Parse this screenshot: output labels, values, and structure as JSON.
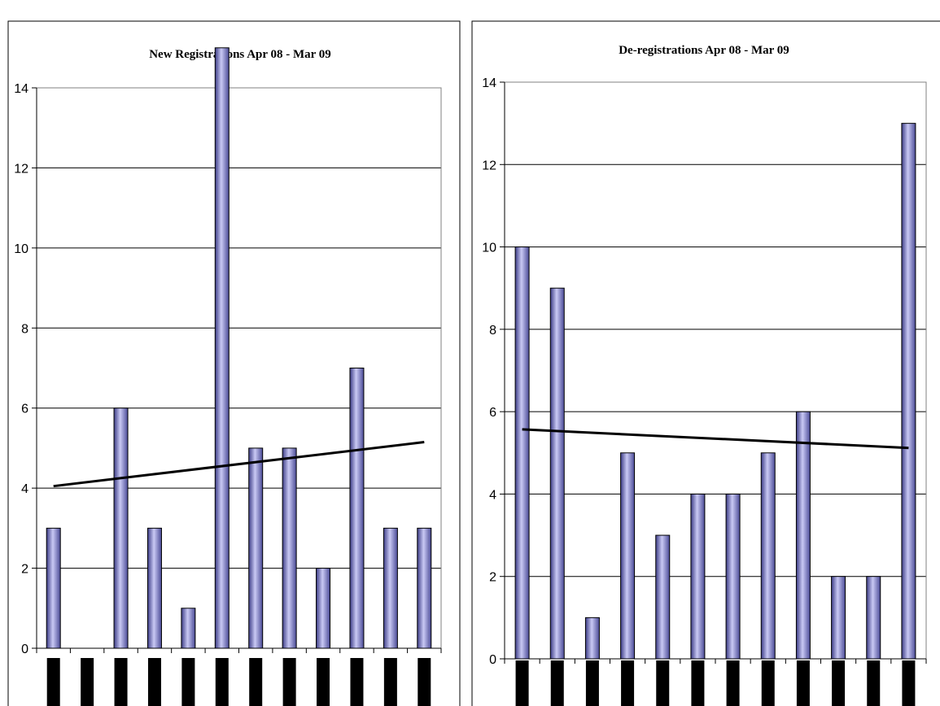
{
  "colors": {
    "bar_light": "#c9c9f4",
    "bar_dark": "#3c3c86",
    "trend": "#000000",
    "grid": "#000000",
    "plot_border": "#808080",
    "label_blocks": "#000000"
  },
  "chart_data": [
    {
      "type": "bar",
      "title": "New Registrations Apr 08 - Mar 09",
      "categories": [
        "",
        "",
        "",
        "",
        "",
        "",
        "",
        "",
        "",
        "",
        "",
        ""
      ],
      "values": [
        3,
        0,
        6,
        3,
        1,
        15,
        5,
        5,
        2,
        7,
        3,
        3
      ],
      "ylim": [
        0,
        14
      ],
      "yticks": [
        "0",
        "2",
        "4",
        "6",
        "8",
        "10",
        "12",
        "14"
      ],
      "trendline": [
        4.05,
        5.15
      ],
      "grid": true,
      "legend": "none",
      "note": "x-axis category labels obscured by black blocks; tallest bar exceeds axis maximum"
    },
    {
      "type": "bar",
      "title": "De-registrations Apr 08 - Mar 09",
      "categories": [
        "",
        "",
        "",
        "",
        "",
        "",
        "",
        "",
        "",
        "",
        "",
        ""
      ],
      "values": [
        10,
        9,
        1,
        5,
        3,
        4,
        4,
        5,
        6,
        2,
        2,
        13
      ],
      "ylim": [
        0,
        14
      ],
      "yticks": [
        "0",
        "2",
        "4",
        "6",
        "8",
        "10",
        "12",
        "14"
      ],
      "trendline": [
        5.57,
        5.12
      ],
      "grid": true,
      "legend": "none",
      "note": "x-axis category labels obscured by black blocks"
    }
  ]
}
